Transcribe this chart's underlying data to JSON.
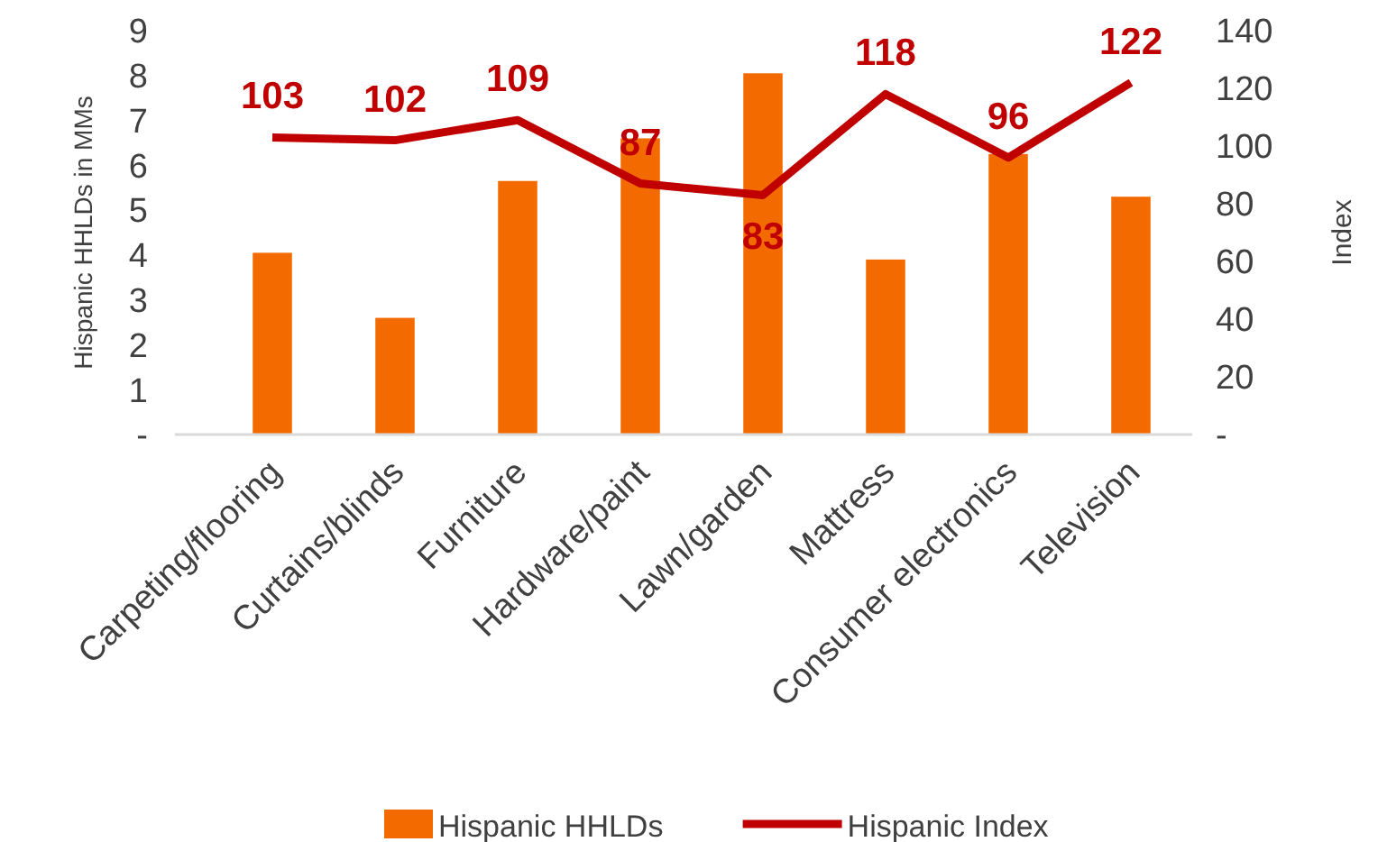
{
  "chart_data": {
    "type": "bar",
    "categories": [
      "Carpeting/flooring",
      "Curtains/blinds",
      "Furniture",
      "Hardware/paint",
      "Lawn/garden",
      "Mattress",
      "Consumer electronics",
      "Television"
    ],
    "series": [
      {
        "name": "Hispanic HHLDs",
        "color": "#f26a00",
        "values": [
          4.05,
          2.6,
          5.65,
          6.6,
          8.05,
          3.9,
          6.25,
          5.3
        ]
      },
      {
        "name": "Hispanic Index",
        "type": "line",
        "axis": "y2",
        "color": "#c00000",
        "values": [
          103,
          102,
          109,
          87,
          83,
          118,
          96,
          122
        ],
        "data_labels": true
      }
    ],
    "ylabel": "Hispanic HHLDs in MMs",
    "y2label": "Index",
    "ylim": [
      0,
      9
    ],
    "yticks": [
      {
        "value": 0,
        "label": "-"
      },
      1,
      2,
      3,
      4,
      5,
      6,
      7,
      8,
      9
    ],
    "y2lim": [
      0,
      140
    ],
    "y2ticks": [
      {
        "value": 0,
        "label": "-"
      },
      20,
      40,
      60,
      80,
      100,
      120,
      140
    ],
    "legend": "bottom",
    "grid": false,
    "marker": "none",
    "line_style": "solid"
  }
}
